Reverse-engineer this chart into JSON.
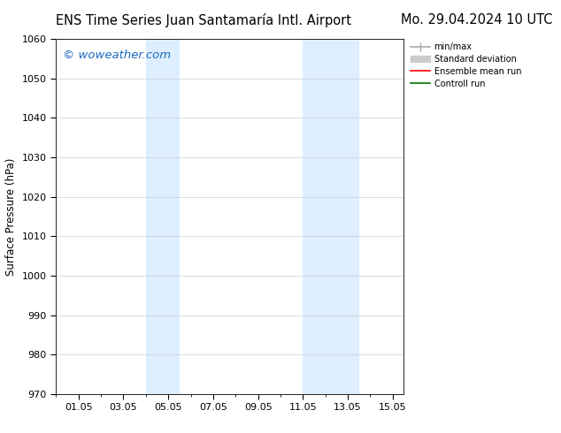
{
  "title_left": "ENS Time Series Juan Santamaría Intl. Airport",
  "title_right": "Mo. 29.04.2024 10 UTC",
  "ylabel": "Surface Pressure (hPa)",
  "watermark": "© woweather.com",
  "watermark_color": "#1a6bbf",
  "ylim": [
    970,
    1060
  ],
  "yticks": [
    970,
    980,
    990,
    1000,
    1010,
    1020,
    1030,
    1040,
    1050,
    1060
  ],
  "xtick_labels": [
    "01.05",
    "03.05",
    "05.05",
    "07.05",
    "09.05",
    "11.05",
    "13.05",
    "15.05"
  ],
  "xtick_positions": [
    1,
    3,
    5,
    7,
    9,
    11,
    13,
    15
  ],
  "xlim": [
    0.0,
    15.5
  ],
  "shaded_bands": [
    {
      "xmin": 4.0,
      "xmax": 5.5,
      "color": "#ddeeff"
    },
    {
      "xmin": 11.0,
      "xmax": 13.5,
      "color": "#ddeeff"
    }
  ],
  "legend_entries": [
    {
      "label": "min/max",
      "color": "#aaaaaa",
      "lw": 1.2
    },
    {
      "label": "Standard deviation",
      "color": "#cccccc",
      "lw": 6
    },
    {
      "label": "Ensemble mean run",
      "color": "#ff0000",
      "lw": 1.2
    },
    {
      "label": "Controll run",
      "color": "#007700",
      "lw": 1.2
    }
  ],
  "bg_color": "#ffffff",
  "plot_bg_color": "#ffffff",
  "title_fontsize": 10.5,
  "axis_fontsize": 8.5,
  "tick_fontsize": 8,
  "watermark_fontsize": 9.5
}
